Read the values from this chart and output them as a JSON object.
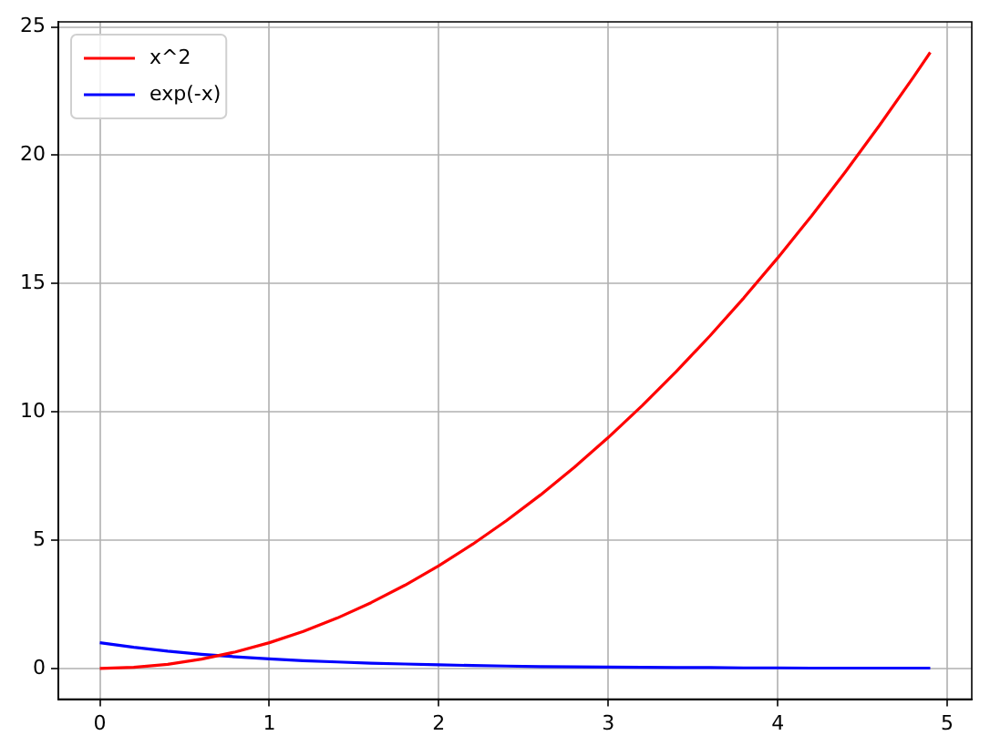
{
  "chart_data": {
    "type": "line",
    "x": [
      0,
      0.2,
      0.4,
      0.6,
      0.8,
      1,
      1.2,
      1.4,
      1.6,
      1.8,
      2,
      2.2,
      2.4,
      2.6,
      2.8,
      3,
      3.2,
      3.4,
      3.6,
      3.8,
      4,
      4.2,
      4.4,
      4.6,
      4.8,
      4.9
    ],
    "series": [
      {
        "name": "x^2",
        "color": "#ff0000",
        "values": [
          0,
          0.04,
          0.16,
          0.36,
          0.64,
          1,
          1.44,
          1.96,
          2.56,
          3.24,
          4,
          4.84,
          5.76,
          6.76,
          7.84,
          9,
          10.24,
          11.56,
          12.96,
          14.44,
          16,
          17.64,
          19.36,
          21.16,
          23.04,
          24.01
        ]
      },
      {
        "name": "exp(-x)",
        "color": "#0000ff",
        "values": [
          1,
          0.82,
          0.67,
          0.55,
          0.45,
          0.37,
          0.3,
          0.25,
          0.2,
          0.17,
          0.14,
          0.11,
          0.09,
          0.07,
          0.06,
          0.05,
          0.04,
          0.03,
          0.03,
          0.02,
          0.02,
          0.01,
          0.01,
          0.01,
          0.01,
          0.01
        ]
      }
    ],
    "xlim": [
      -0.245,
      5.145
    ],
    "xticks": [
      0,
      1,
      2,
      3,
      4,
      5
    ],
    "ylim": [
      -1.2,
      25.2
    ],
    "yticks": [
      0,
      5,
      10,
      15,
      20,
      25
    ],
    "grid": true,
    "legend": "top left",
    "marker": "none",
    "line_style": "solid"
  }
}
